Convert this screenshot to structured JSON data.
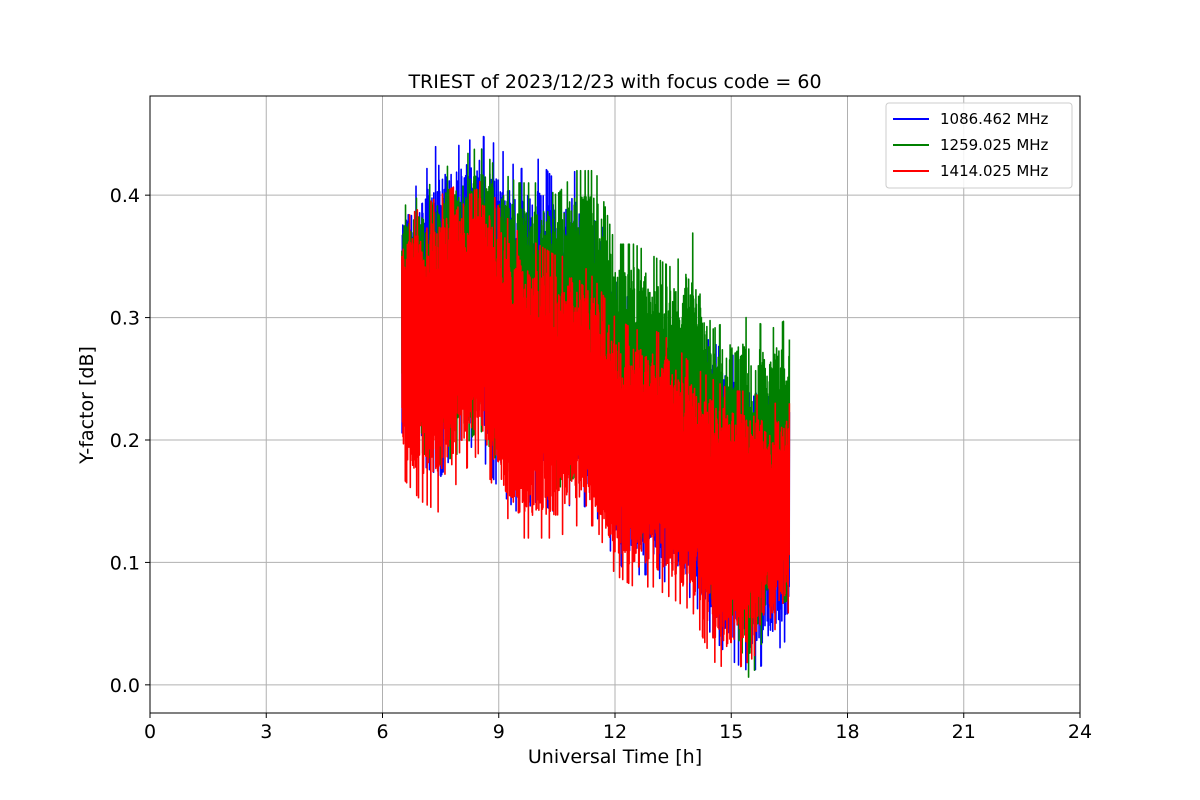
{
  "chart_data": {
    "type": "line",
    "title": "TRIEST of 2023/12/23 with focus code = 60",
    "xlabel": "Universal Time [h]",
    "ylabel": "Y-factor [dB]",
    "xlim": [
      0,
      24
    ],
    "ylim": [
      -0.023,
      0.481
    ],
    "xticks": [
      0,
      3,
      6,
      9,
      12,
      15,
      18,
      21,
      24
    ],
    "xtick_labels": [
      "0",
      "3",
      "6",
      "9",
      "12",
      "15",
      "18",
      "21",
      "24"
    ],
    "yticks": [
      0.0,
      0.1,
      0.2,
      0.3,
      0.4
    ],
    "ytick_labels": [
      "0.0",
      "0.1",
      "0.2",
      "0.3",
      "0.4"
    ],
    "grid": true,
    "legend_position": "upper right",
    "series": [
      {
        "name": "1086.462 MHz",
        "color": "#0000ff",
        "x": [
          6.5,
          7.0,
          7.5,
          8.0,
          8.5,
          9.0,
          9.5,
          10.0,
          10.5,
          11.0,
          11.5,
          12.0,
          12.5,
          13.0,
          13.5,
          14.0,
          14.5,
          15.0,
          15.5,
          16.0,
          16.5
        ],
        "max": [
          0.4,
          0.41,
          0.45,
          0.44,
          0.45,
          0.44,
          0.42,
          0.43,
          0.41,
          0.42,
          0.4,
          0.33,
          0.31,
          0.29,
          0.3,
          0.29,
          0.28,
          0.27,
          0.26,
          0.26,
          0.25
        ],
        "min": [
          0.19,
          0.18,
          0.17,
          0.2,
          0.19,
          0.16,
          0.14,
          0.15,
          0.14,
          0.15,
          0.14,
          0.1,
          0.09,
          0.09,
          0.08,
          0.07,
          0.04,
          0.02,
          0.01,
          0.02,
          0.04
        ]
      },
      {
        "name": "1259.025 MHz",
        "color": "#008000",
        "x": [
          6.5,
          7.0,
          7.5,
          8.0,
          8.5,
          9.0,
          9.5,
          10.0,
          10.5,
          11.0,
          11.5,
          12.0,
          12.5,
          13.0,
          13.5,
          14.0,
          14.5,
          15.0,
          15.5,
          16.0,
          16.5
        ],
        "max": [
          0.39,
          0.4,
          0.42,
          0.43,
          0.44,
          0.42,
          0.41,
          0.41,
          0.4,
          0.42,
          0.42,
          0.36,
          0.36,
          0.35,
          0.34,
          0.37,
          0.29,
          0.3,
          0.3,
          0.29,
          0.3
        ],
        "min": [
          0.2,
          0.19,
          0.18,
          0.19,
          0.21,
          0.18,
          0.17,
          0.17,
          0.16,
          0.17,
          0.16,
          0.13,
          0.12,
          0.12,
          0.11,
          0.1,
          0.07,
          0.06,
          0.0,
          0.06,
          0.07
        ]
      },
      {
        "name": "1414.025 MHz",
        "color": "#ff0000",
        "x": [
          6.5,
          7.0,
          7.5,
          8.0,
          8.5,
          9.0,
          9.5,
          10.0,
          10.5,
          11.0,
          11.5,
          12.0,
          12.5,
          13.0,
          13.5,
          14.0,
          14.5,
          15.0,
          15.5,
          16.0,
          16.5
        ],
        "max": [
          0.38,
          0.39,
          0.4,
          0.41,
          0.43,
          0.39,
          0.37,
          0.36,
          0.35,
          0.35,
          0.33,
          0.3,
          0.29,
          0.29,
          0.28,
          0.26,
          0.25,
          0.24,
          0.24,
          0.23,
          0.23
        ],
        "min": [
          0.17,
          0.15,
          0.14,
          0.17,
          0.19,
          0.15,
          0.12,
          0.12,
          0.12,
          0.13,
          0.13,
          0.09,
          0.08,
          0.08,
          0.07,
          0.06,
          0.02,
          0.01,
          0.02,
          0.04,
          0.06
        ]
      }
    ]
  }
}
